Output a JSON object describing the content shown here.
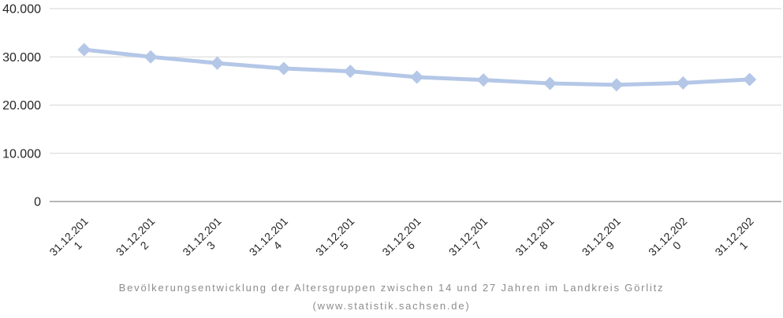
{
  "chart_data": {
    "type": "line",
    "title": "Bevölkerungsentwicklung der Altersgruppen zwischen 14 und 27 Jahren im Landkreis Görlitz",
    "subtitle": "(www.statistik.sachsen.de)",
    "categories": [
      "31.12.2011",
      "31.12.2012",
      "31.12.2013",
      "31.12.2014",
      "31.12.2015",
      "31.12.2016",
      "31.12.2017",
      "31.12.2018",
      "31.12.2019",
      "31.12.2020",
      "31.12.2021"
    ],
    "values": [
      31500,
      30000,
      28700,
      27600,
      27000,
      25800,
      25200,
      24500,
      24200,
      24600,
      25300
    ],
    "xlabel": "",
    "ylabel": "",
    "ylim": [
      0,
      40000
    ],
    "ytick_interval": 10000,
    "ytick_labels": [
      "0",
      "10.000",
      "20.000",
      "30.000",
      "40.000"
    ],
    "grid": true,
    "legend_position": "none",
    "marker": "diamond",
    "colors": {
      "line": "#b4c7e7",
      "marker": "#b4c7e7",
      "gridline": "#d6d6d6",
      "zero_axis_line": "#9e9e9e",
      "axis_label_text": "#262626",
      "caption_text": "#8c8c8c",
      "background": "#ffffff"
    }
  }
}
